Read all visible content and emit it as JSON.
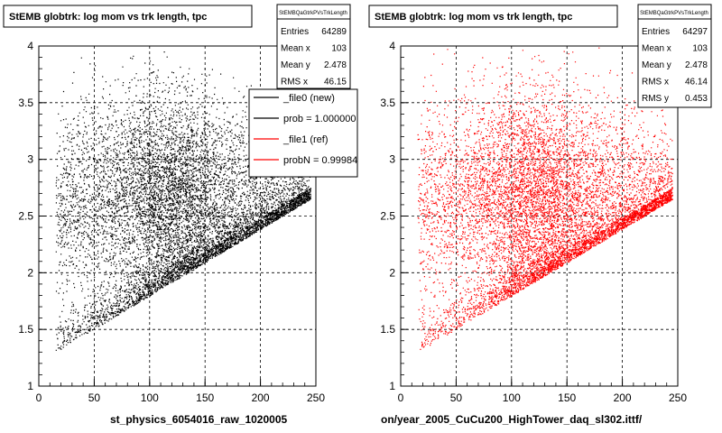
{
  "colors": {
    "new": "#000000",
    "ref": "#ff0000",
    "grid": "#000000",
    "frame": "#000000",
    "background": "#ffffff"
  },
  "chart_data": [
    {
      "type": "scatter",
      "title": "StEMB globtrk: log mom vs trk length, tpc",
      "stats_box": {
        "name": "StEMBQaGtrkPVsTrkLength",
        "rows": [
          {
            "label": "Entries",
            "value": "64289"
          },
          {
            "label": "Mean x",
            "value": "103"
          },
          {
            "label": "Mean y",
            "value": "2.478"
          },
          {
            "label": "RMS x",
            "value": "46.15"
          }
        ]
      },
      "legend": {
        "placement": "top-right",
        "entries": [
          {
            "label": "_file0 (new)",
            "color": "#000000"
          },
          {
            "label": "prob = 1.000000",
            "color": "#000000"
          },
          {
            "label": "_file1 (ref)",
            "color": "#ff0000"
          },
          {
            "label": "probN = 0.99984",
            "color": "#ff0000"
          }
        ]
      },
      "xlabel": "st_physics_6054016_raw_1020005",
      "ylabel": "",
      "xlim": [
        0,
        250
      ],
      "ylim": [
        1,
        4
      ],
      "xticks": [
        0,
        50,
        100,
        150,
        200,
        250
      ],
      "yticks": [
        1,
        1.5,
        2,
        2.5,
        3,
        3.5,
        4
      ],
      "grid": true,
      "series": [
        {
          "color": "#000000",
          "entries": 64289,
          "mean_x": 103,
          "mean_y": 2.478,
          "rms_x": 46.15
        }
      ]
    },
    {
      "type": "scatter",
      "title": "StEMB globtrk: log mom vs trk length, tpc",
      "stats_box": {
        "name": "StEMBQaGtrkPVsTrkLength",
        "rows": [
          {
            "label": "Entries",
            "value": "64297"
          },
          {
            "label": "Mean x",
            "value": "103"
          },
          {
            "label": "Mean y",
            "value": "2.478"
          },
          {
            "label": "RMS x",
            "value": "46.14"
          },
          {
            "label": "RMS y",
            "value": "0.453"
          }
        ]
      },
      "xlabel": "on/year_2005_CuCu200_HighTower_daq_sl302.ittf/",
      "ylabel": "",
      "xlim": [
        0,
        250
      ],
      "ylim": [
        1,
        4
      ],
      "xticks": [
        0,
        50,
        100,
        150,
        200,
        250
      ],
      "yticks": [
        1,
        1.5,
        2,
        2.5,
        3,
        3.5,
        4
      ],
      "grid": true,
      "series": [
        {
          "color": "#ff0000",
          "entries": 64297,
          "mean_x": 103,
          "mean_y": 2.478,
          "rms_x": 46.14,
          "rms_y": 0.453
        }
      ]
    }
  ]
}
